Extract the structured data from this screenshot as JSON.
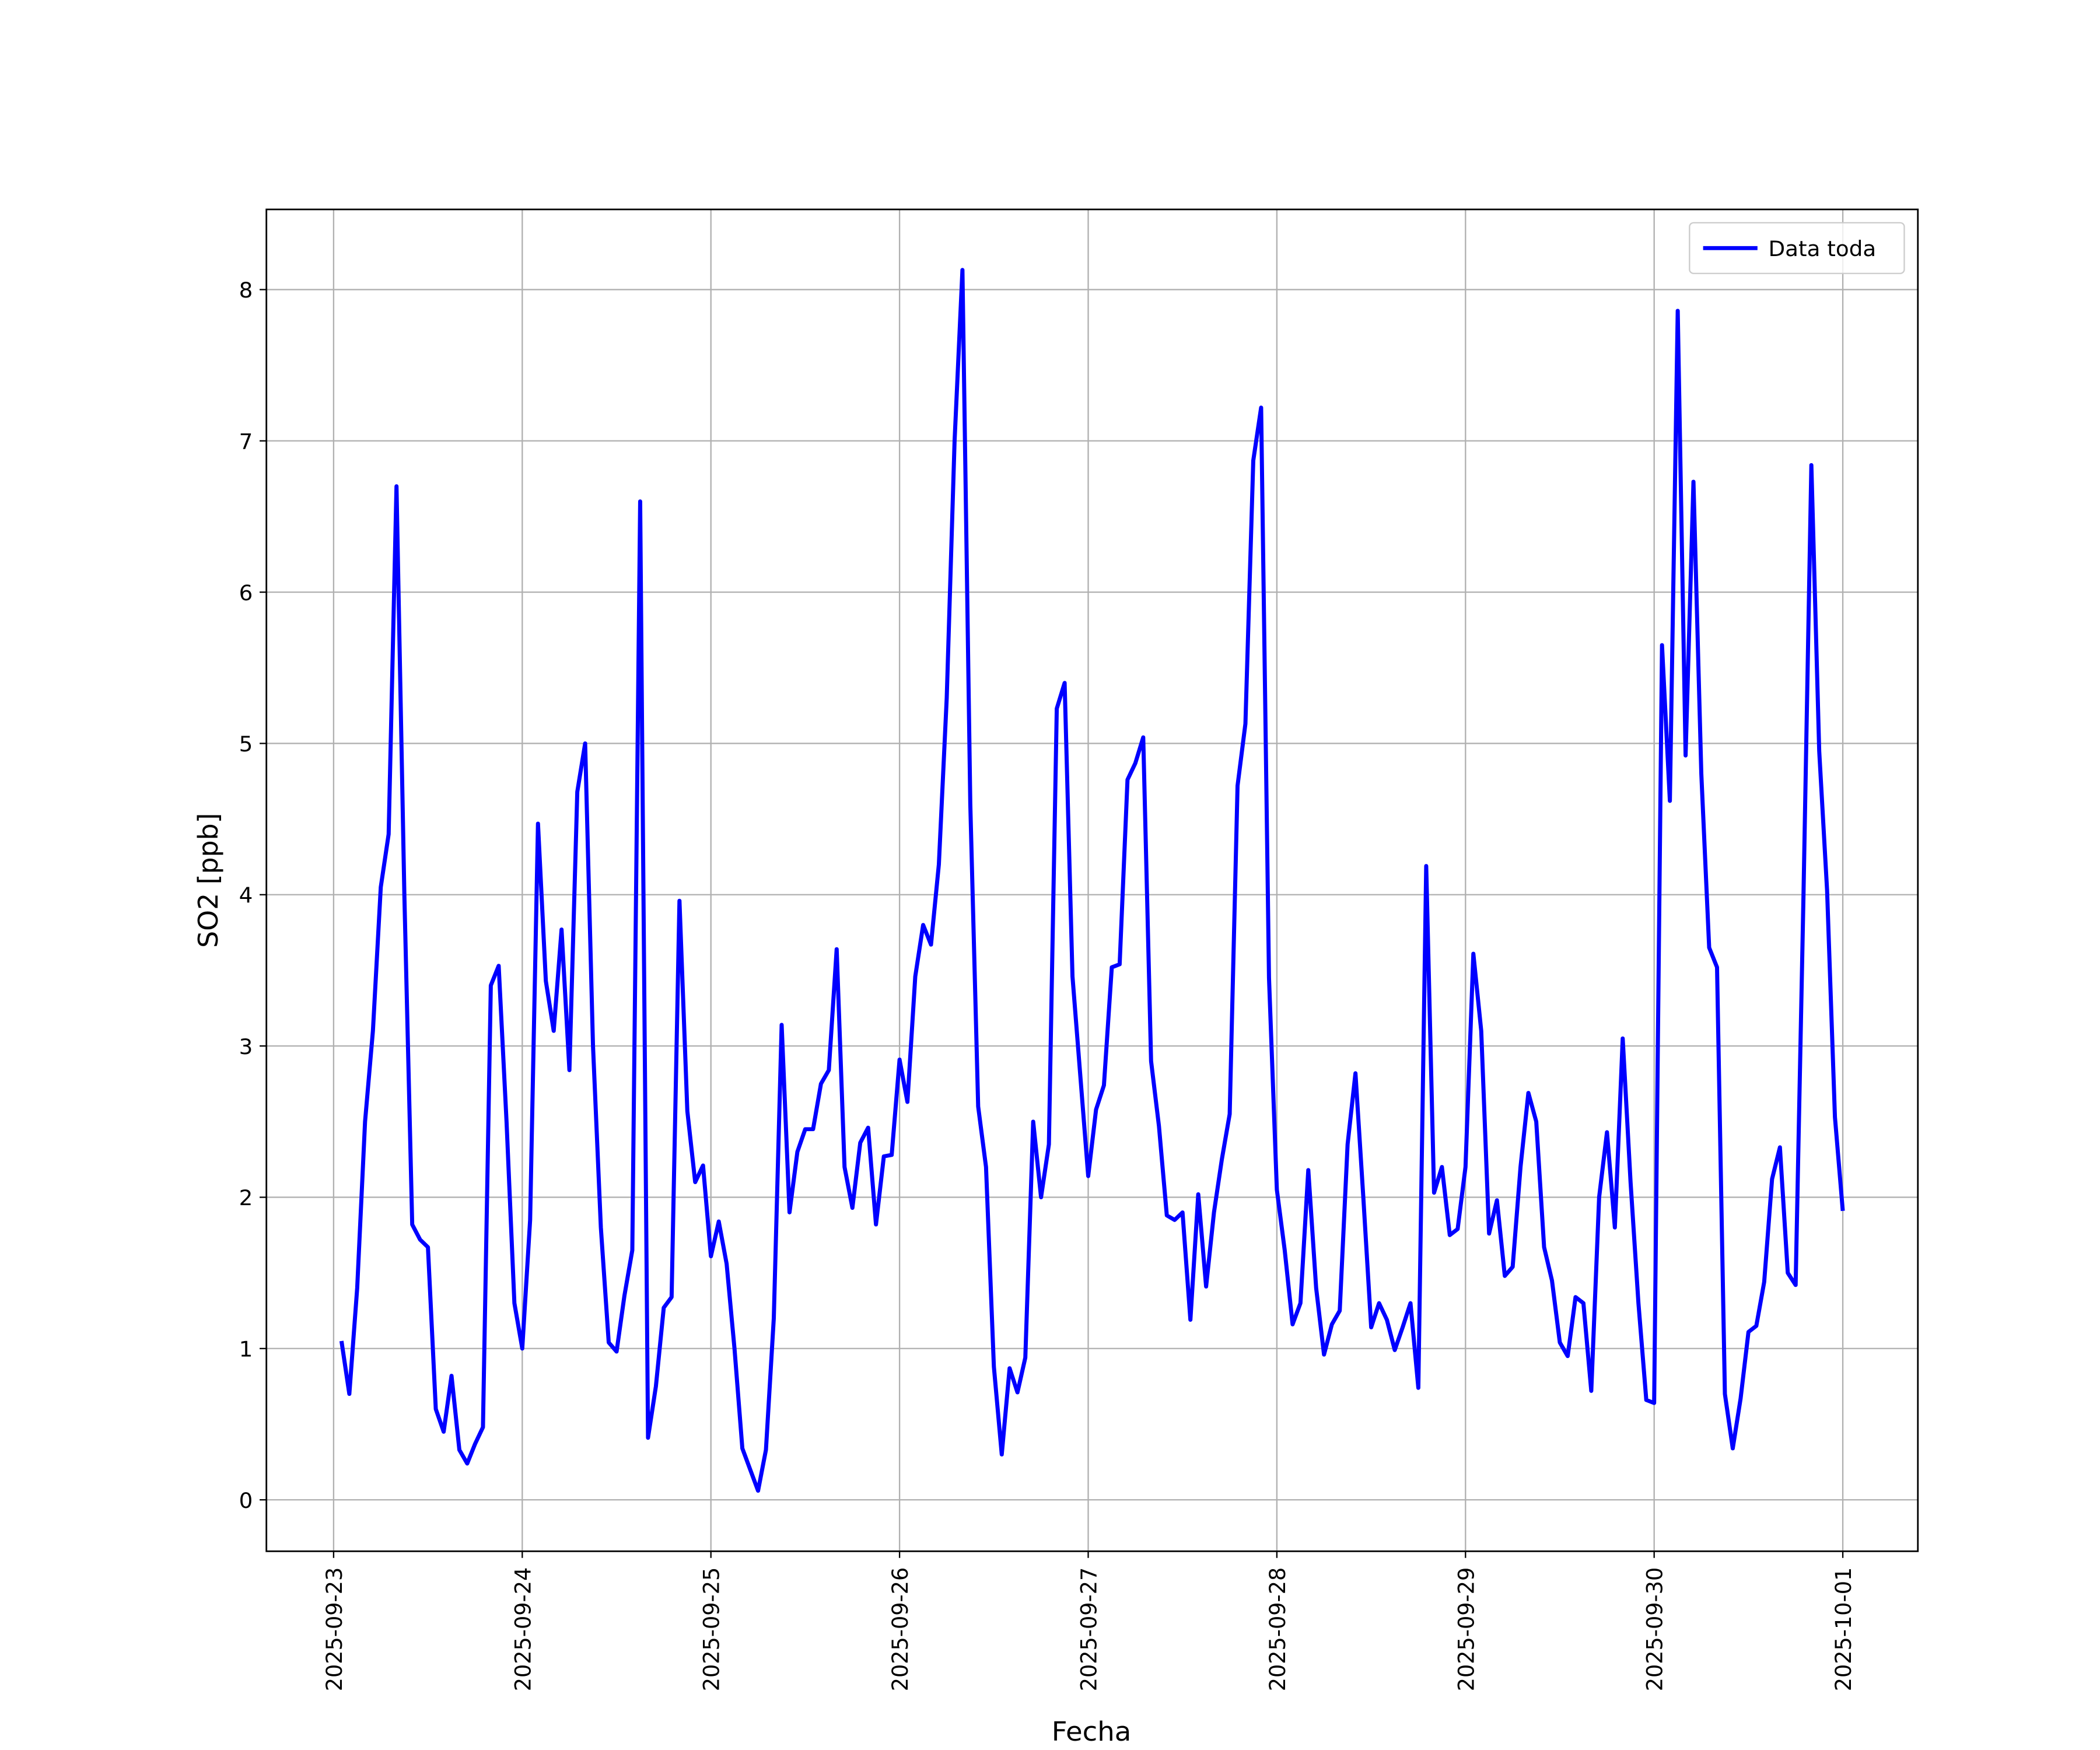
{
  "chart_data": {
    "type": "line",
    "xlabel": "Fecha",
    "ylabel": "SO2 [ppb]",
    "grid": true,
    "legend": "upper right",
    "xlim": [
      "2025-09-22 15:27",
      "2025-10-01 09:33"
    ],
    "ylim": [
      -0.34,
      8.53
    ],
    "xticks": [
      "2025-09-23",
      "2025-09-24",
      "2025-09-25",
      "2025-09-26",
      "2025-09-27",
      "2025-09-28",
      "2025-09-29",
      "2025-09-30",
      "2025-10-01"
    ],
    "yticks": [
      0,
      1,
      2,
      3,
      4,
      5,
      6,
      7,
      8
    ],
    "x": [
      "2025-09-23 01:00",
      "2025-09-23 02:00",
      "2025-09-23 03:00",
      "2025-09-23 04:00",
      "2025-09-23 05:00",
      "2025-09-23 06:00",
      "2025-09-23 07:00",
      "2025-09-23 08:00",
      "2025-09-23 09:00",
      "2025-09-23 10:00",
      "2025-09-23 11:00",
      "2025-09-23 12:00",
      "2025-09-23 13:00",
      "2025-09-23 14:00",
      "2025-09-23 15:00",
      "2025-09-23 16:00",
      "2025-09-23 17:00",
      "2025-09-23 18:00",
      "2025-09-23 19:00",
      "2025-09-23 20:00",
      "2025-09-23 21:00",
      "2025-09-23 22:00",
      "2025-09-23 23:00",
      "2025-09-24 00:00",
      "2025-09-24 01:00",
      "2025-09-24 02:00",
      "2025-09-24 03:00",
      "2025-09-24 04:00",
      "2025-09-24 05:00",
      "2025-09-24 06:00",
      "2025-09-24 07:00",
      "2025-09-24 08:00",
      "2025-09-24 09:00",
      "2025-09-24 10:00",
      "2025-09-24 11:00",
      "2025-09-24 12:00",
      "2025-09-24 13:00",
      "2025-09-24 14:00",
      "2025-09-24 15:00",
      "2025-09-24 16:00",
      "2025-09-24 17:00",
      "2025-09-24 18:00",
      "2025-09-24 19:00",
      "2025-09-24 20:00",
      "2025-09-24 21:00",
      "2025-09-24 22:00",
      "2025-09-24 23:00",
      "2025-09-25 00:00",
      "2025-09-25 01:00",
      "2025-09-25 02:00",
      "2025-09-25 03:00",
      "2025-09-25 04:00",
      "2025-09-25 05:00",
      "2025-09-25 06:00",
      "2025-09-25 07:00",
      "2025-09-25 08:00",
      "2025-09-25 09:00",
      "2025-09-25 10:00",
      "2025-09-25 11:00",
      "2025-09-25 12:00",
      "2025-09-25 13:00",
      "2025-09-25 14:00",
      "2025-09-25 15:00",
      "2025-09-25 16:00",
      "2025-09-25 17:00",
      "2025-09-25 18:00",
      "2025-09-25 19:00",
      "2025-09-25 20:00",
      "2025-09-25 21:00",
      "2025-09-25 22:00",
      "2025-09-25 23:00",
      "2025-09-26 00:00",
      "2025-09-26 01:00",
      "2025-09-26 02:00",
      "2025-09-26 03:00",
      "2025-09-26 04:00",
      "2025-09-26 05:00",
      "2025-09-26 06:00",
      "2025-09-26 07:00",
      "2025-09-26 08:00",
      "2025-09-26 09:00",
      "2025-09-26 10:00",
      "2025-09-26 11:00",
      "2025-09-26 12:00",
      "2025-09-26 13:00",
      "2025-09-26 14:00",
      "2025-09-26 15:00",
      "2025-09-26 16:00",
      "2025-09-26 17:00",
      "2025-09-26 18:00",
      "2025-09-26 19:00",
      "2025-09-26 20:00",
      "2025-09-26 21:00",
      "2025-09-26 22:00",
      "2025-09-26 23:00",
      "2025-09-27 00:00",
      "2025-09-27 01:00",
      "2025-09-27 02:00",
      "2025-09-27 03:00",
      "2025-09-27 04:00",
      "2025-09-27 05:00",
      "2025-09-27 06:00",
      "2025-09-27 07:00",
      "2025-09-27 08:00",
      "2025-09-27 09:00",
      "2025-09-27 10:00",
      "2025-09-27 11:00",
      "2025-09-27 12:00",
      "2025-09-27 13:00",
      "2025-09-27 14:00",
      "2025-09-27 15:00",
      "2025-09-27 16:00",
      "2025-09-27 17:00",
      "2025-09-27 18:00",
      "2025-09-27 19:00",
      "2025-09-27 20:00",
      "2025-09-27 21:00",
      "2025-09-27 22:00",
      "2025-09-27 23:00",
      "2025-09-28 00:00",
      "2025-09-28 01:00",
      "2025-09-28 02:00",
      "2025-09-28 03:00",
      "2025-09-28 04:00",
      "2025-09-28 05:00",
      "2025-09-28 06:00",
      "2025-09-28 07:00",
      "2025-09-28 08:00",
      "2025-09-28 09:00",
      "2025-09-28 10:00",
      "2025-09-28 11:00",
      "2025-09-28 12:00",
      "2025-09-28 13:00",
      "2025-09-28 14:00",
      "2025-09-28 15:00",
      "2025-09-28 16:00",
      "2025-09-28 17:00",
      "2025-09-28 18:00",
      "2025-09-28 19:00",
      "2025-09-28 20:00",
      "2025-09-28 21:00",
      "2025-09-28 22:00",
      "2025-09-28 23:00",
      "2025-09-29 00:00",
      "2025-09-29 01:00",
      "2025-09-29 02:00",
      "2025-09-29 03:00",
      "2025-09-29 04:00",
      "2025-09-29 05:00",
      "2025-09-29 06:00",
      "2025-09-29 07:00",
      "2025-09-29 08:00",
      "2025-09-29 09:00",
      "2025-09-29 10:00",
      "2025-09-29 11:00",
      "2025-09-29 12:00",
      "2025-09-29 13:00",
      "2025-09-29 14:00",
      "2025-09-29 15:00",
      "2025-09-29 16:00",
      "2025-09-29 17:00",
      "2025-09-29 18:00",
      "2025-09-29 19:00",
      "2025-09-29 20:00",
      "2025-09-29 21:00",
      "2025-09-29 22:00",
      "2025-09-29 23:00",
      "2025-09-30 00:00",
      "2025-09-30 01:00",
      "2025-09-30 02:00",
      "2025-09-30 03:00",
      "2025-09-30 04:00",
      "2025-09-30 05:00",
      "2025-09-30 06:00",
      "2025-09-30 07:00",
      "2025-09-30 08:00",
      "2025-09-30 09:00",
      "2025-09-30 10:00",
      "2025-09-30 11:00",
      "2025-09-30 12:00",
      "2025-09-30 13:00",
      "2025-09-30 14:00",
      "2025-09-30 15:00",
      "2025-09-30 16:00",
      "2025-09-30 17:00",
      "2025-09-30 18:00",
      "2025-09-30 19:00",
      "2025-09-30 20:00",
      "2025-09-30 21:00",
      "2025-09-30 22:00",
      "2025-09-30 23:00",
      "2025-10-01 00:00"
    ],
    "series": [
      {
        "name": "Data toda",
        "color": "#0000ff",
        "values": [
          1.05,
          0.7,
          1.4,
          2.5,
          3.1,
          4.05,
          4.4,
          6.7,
          4.0,
          1.82,
          1.72,
          1.67,
          0.6,
          0.45,
          0.82,
          0.33,
          0.24,
          0.37,
          0.48,
          3.4,
          3.53,
          2.5,
          1.3,
          1.0,
          1.85,
          4.47,
          3.43,
          3.1,
          3.77,
          2.84,
          4.68,
          5.0,
          3.0,
          1.8,
          1.04,
          0.98,
          1.35,
          1.65,
          6.6,
          0.41,
          0.75,
          1.27,
          1.34,
          3.96,
          2.57,
          2.1,
          2.21,
          1.61,
          1.84,
          1.56,
          1.0,
          0.34,
          0.2,
          0.06,
          0.33,
          1.2,
          3.14,
          1.9,
          2.3,
          2.45,
          2.45,
          2.75,
          2.84,
          3.64,
          2.2,
          1.93,
          2.36,
          2.46,
          1.82,
          2.27,
          2.28,
          2.91,
          2.63,
          3.46,
          3.8,
          3.67,
          4.2,
          5.3,
          7.0,
          8.13,
          4.6,
          2.6,
          2.2,
          0.88,
          0.3,
          0.87,
          0.71,
          0.94,
          2.5,
          2.0,
          2.35,
          5.23,
          5.4,
          3.46,
          2.8,
          2.14,
          2.58,
          2.74,
          3.52,
          3.54,
          4.76,
          4.87,
          5.04,
          2.9,
          2.47,
          1.88,
          1.85,
          1.9,
          1.19,
          2.02,
          1.41,
          1.9,
          2.25,
          2.55,
          4.72,
          5.13,
          6.87,
          7.22,
          3.45,
          2.05,
          1.65,
          1.16,
          1.3,
          2.18,
          1.4,
          0.96,
          1.16,
          1.25,
          2.35,
          2.82,
          2.0,
          1.14,
          1.3,
          1.19,
          0.99,
          1.14,
          1.3,
          0.74,
          4.19,
          2.03,
          2.2,
          1.75,
          1.79,
          2.2,
          3.61,
          3.1,
          1.76,
          1.98,
          1.48,
          1.54,
          2.2,
          2.69,
          2.5,
          1.67,
          1.45,
          1.04,
          0.95,
          1.34,
          1.3,
          0.72,
          2.0,
          2.43,
          1.8,
          3.05,
          2.1,
          1.3,
          0.66,
          0.64,
          5.65,
          4.62,
          7.86,
          4.92,
          6.73,
          4.8,
          3.65,
          3.52,
          0.7,
          0.34,
          0.67,
          1.11,
          1.15,
          1.44,
          2.12,
          2.33,
          1.5,
          1.42,
          4.0,
          6.84,
          4.95,
          4.03,
          2.53,
          1.91
        ]
      }
    ]
  }
}
